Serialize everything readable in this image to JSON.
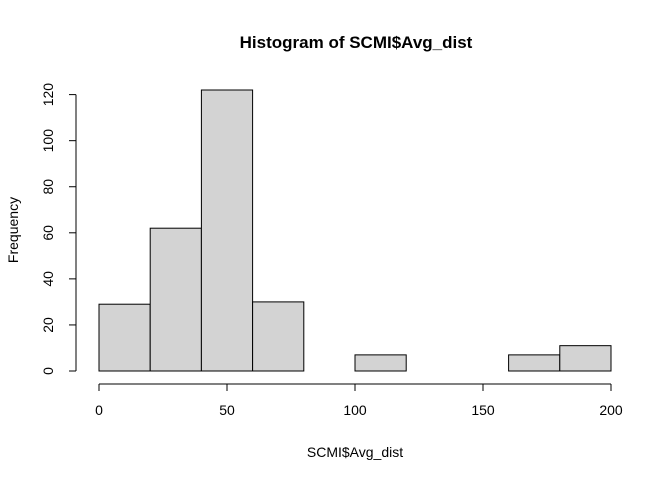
{
  "chart_data": {
    "type": "bar",
    "title": "Histogram of SCMI$Avg_dist",
    "xlabel": "SCMI$Avg_dist",
    "ylabel": "Frequency",
    "bins": [
      {
        "from": 0,
        "to": 20,
        "count": 29
      },
      {
        "from": 20,
        "to": 40,
        "count": 62
      },
      {
        "from": 40,
        "to": 60,
        "count": 122
      },
      {
        "from": 60,
        "to": 80,
        "count": 30
      },
      {
        "from": 80,
        "to": 100,
        "count": 0
      },
      {
        "from": 100,
        "to": 120,
        "count": 7
      },
      {
        "from": 120,
        "to": 140,
        "count": 0
      },
      {
        "from": 140,
        "to": 160,
        "count": 0
      },
      {
        "from": 160,
        "to": 180,
        "count": 7
      },
      {
        "from": 180,
        "to": 200,
        "count": 11
      }
    ],
    "xlim": [
      0,
      200
    ],
    "ylim": [
      0,
      122
    ],
    "xticks": [
      0,
      50,
      100,
      150,
      200
    ],
    "yticks": [
      0,
      20,
      40,
      60,
      80,
      100,
      120
    ],
    "bar_color": "#d3d3d3",
    "grid": false
  }
}
